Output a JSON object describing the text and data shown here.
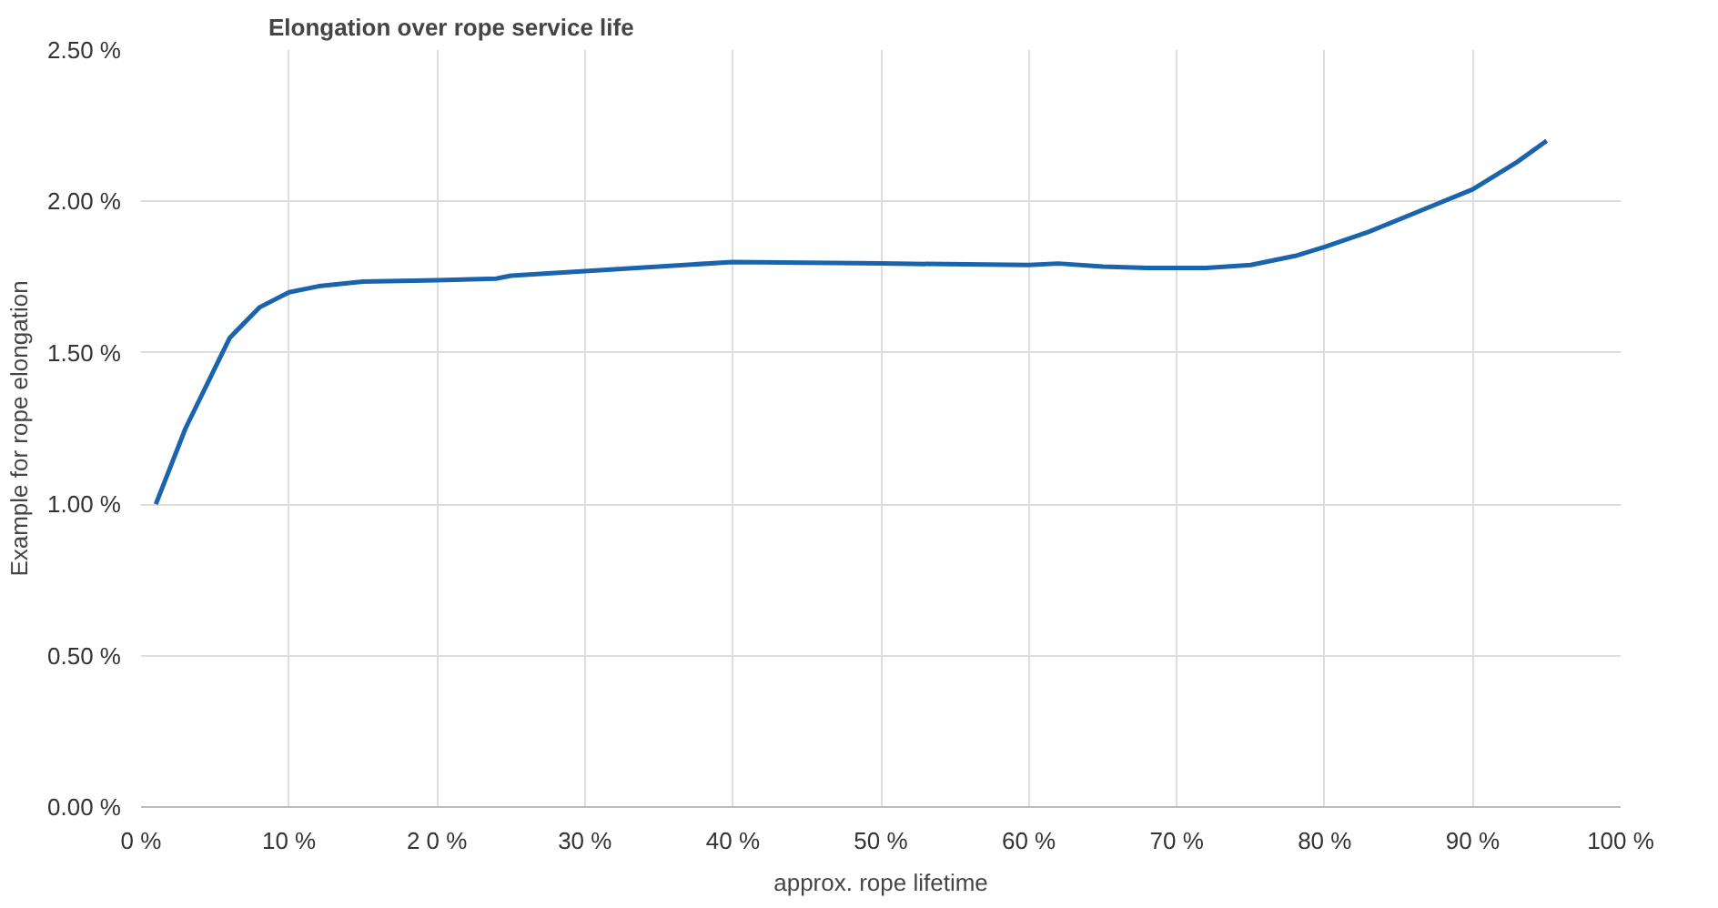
{
  "chart_data": {
    "type": "line",
    "title": "Elongation over rope service life",
    "xlabel": "approx. rope lifetime",
    "ylabel": "Example for rope elongation",
    "x": [
      1,
      3,
      5,
      6,
      8,
      10,
      12,
      15,
      20,
      24,
      25,
      30,
      35,
      40,
      50,
      60,
      62,
      65,
      68,
      72,
      75,
      78,
      80,
      83,
      86,
      90,
      93,
      95
    ],
    "series": [
      {
        "color": "#1a63ad",
        "values": [
          1.0,
          1.25,
          1.45,
          1.55,
          1.65,
          1.7,
          1.72,
          1.735,
          1.74,
          1.745,
          1.755,
          1.77,
          1.785,
          1.8,
          1.795,
          1.79,
          1.795,
          1.785,
          1.78,
          1.78,
          1.79,
          1.82,
          1.85,
          1.9,
          1.96,
          2.04,
          2.13,
          2.2
        ]
      }
    ],
    "xlim": [
      0,
      100
    ],
    "ylim": [
      0,
      2.5
    ],
    "xticks": [
      {
        "value": 0,
        "label": "0 %"
      },
      {
        "value": 10,
        "label": "10 %"
      },
      {
        "value": 20,
        "label": "2 0 %"
      },
      {
        "value": 30,
        "label": "30 %"
      },
      {
        "value": 40,
        "label": "40 %"
      },
      {
        "value": 50,
        "label": "50 %"
      },
      {
        "value": 60,
        "label": "60 %"
      },
      {
        "value": 70,
        "label": "70 %"
      },
      {
        "value": 80,
        "label": "80 %"
      },
      {
        "value": 90,
        "label": "90 %"
      },
      {
        "value": 100,
        "label": "100 %"
      }
    ],
    "yticks": [
      {
        "value": 0,
        "label": "0.00 %"
      },
      {
        "value": 0.5,
        "label": "0.50 %"
      },
      {
        "value": 1,
        "label": "1.00 %"
      },
      {
        "value": 1.5,
        "label": "1.50 %"
      },
      {
        "value": 2,
        "label": "2.00 %"
      },
      {
        "value": 2.5,
        "label": "2.50 %"
      }
    ],
    "grid": true,
    "marker": "none",
    "line_style": "solid"
  }
}
